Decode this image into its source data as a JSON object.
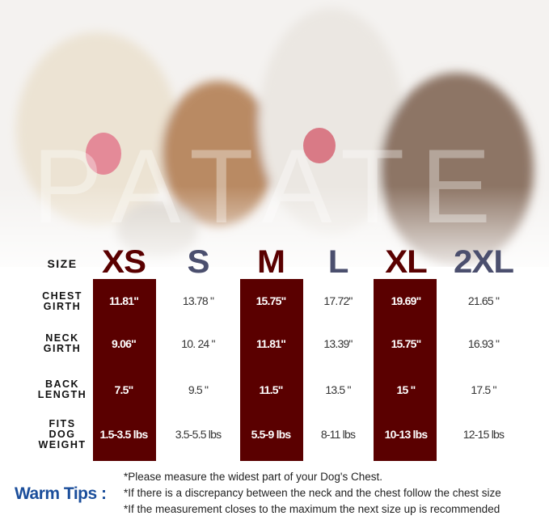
{
  "watermark": "PATATE",
  "row_labels": {
    "size": "SIZE",
    "chest": [
      "CHEST",
      "GIRTH"
    ],
    "neck": [
      "NECK",
      "GIRTH"
    ],
    "back": [
      "BACK",
      "LENGTH"
    ],
    "weight": [
      "FITS",
      "DOG",
      "WEIGHT"
    ]
  },
  "colors": {
    "highlight": "#5a0000",
    "light_size": "#4b4f6e",
    "tips": "#1b4e9b"
  },
  "sizes": [
    {
      "label": "XS",
      "chest": "11.81\"",
      "neck": "9.06\"",
      "back": "7.5\"",
      "weight": "1.5-3.5 lbs",
      "highlight": true
    },
    {
      "label": "S",
      "chest": "13.78 \"",
      "neck": "10. 24 \"",
      "back": "9.5 \"",
      "weight": "3.5-5.5 lbs",
      "highlight": false
    },
    {
      "label": "M",
      "chest": "15.75\"",
      "neck": "11.81\"",
      "back": "11.5\"",
      "weight": "5.5-9 lbs",
      "highlight": true
    },
    {
      "label": "L",
      "chest": "17.72\"",
      "neck": "13.39\"",
      "back": "13.5 \"",
      "weight": "8-11 lbs",
      "highlight": false
    },
    {
      "label": "XL",
      "chest": "19.69\"",
      "neck": "15.75\"",
      "back": "15 \"",
      "weight": "10-13 lbs",
      "highlight": true
    },
    {
      "label": "2XL",
      "chest": "21.65 \"",
      "neck": "16.93 \"",
      "back": "17.5 \"",
      "weight": "12-15 lbs",
      "highlight": false
    }
  ],
  "tips": {
    "title": "Warm Tips :",
    "lines": [
      "*Please measure the widest part of your Dog's Chest.",
      "*If there is a discrepancy between the neck and the chest  follow the chest size",
      "*If the measurement closes to the maximum the next size up is recommended"
    ]
  }
}
